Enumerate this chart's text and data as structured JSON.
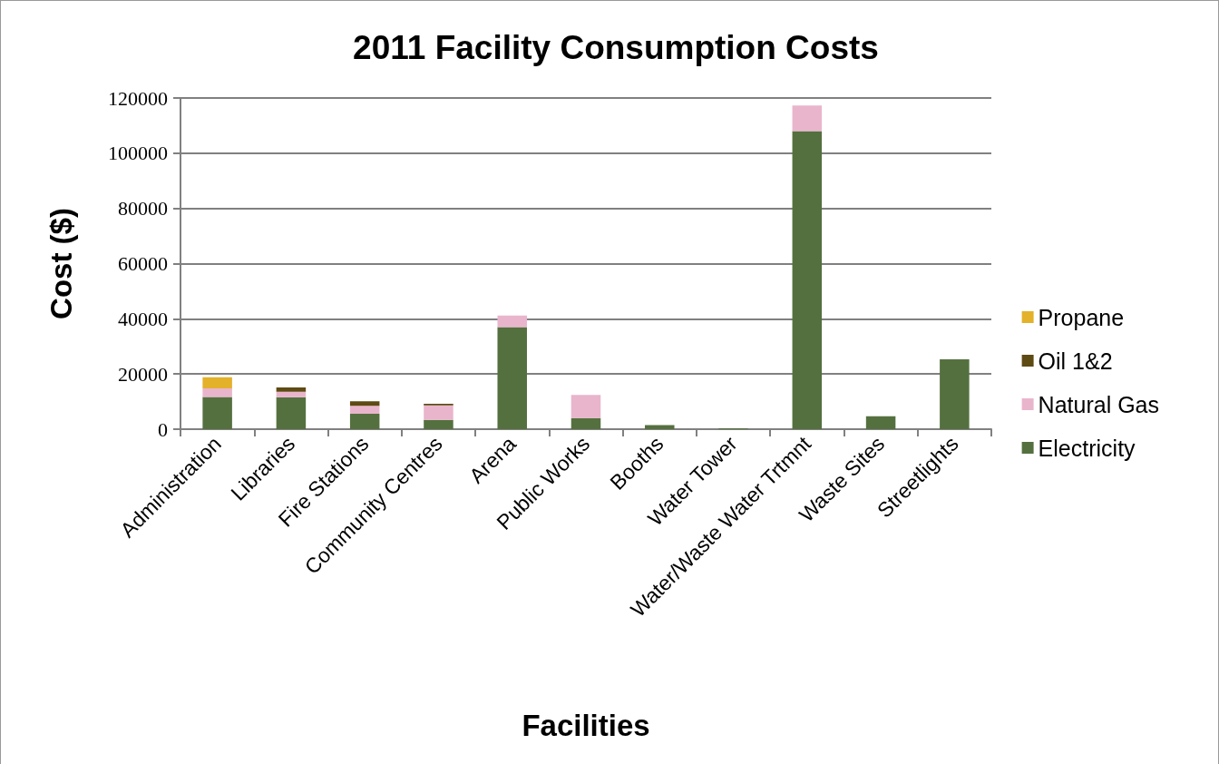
{
  "chart_data": {
    "type": "bar",
    "title": "2011 Facility Consumption Costs",
    "xlabel": "Facilities",
    "ylabel": "Cost ($)",
    "categories": [
      "Administration",
      "Libraries",
      "Fire Stations",
      "Community Centres",
      "Arena",
      "Public Works",
      "Booths",
      "Water Tower",
      "Water/Waste Water Trtmnt",
      "Waste Sites",
      "Streetlights"
    ],
    "stacked": true,
    "series": [
      {
        "name": "Electricity",
        "color": "#55703f",
        "values": [
          11700,
          11600,
          5600,
          3400,
          37000,
          4000,
          1500,
          300,
          108000,
          4700,
          25300
        ]
      },
      {
        "name": "Natural Gas",
        "color": "#e9b5cc",
        "values": [
          3100,
          2000,
          2900,
          5200,
          4200,
          8400,
          0,
          0,
          9300,
          0,
          0
        ]
      },
      {
        "name": "Oil 1&2",
        "color": "#5e4a13",
        "values": [
          0,
          1500,
          1600,
          600,
          0,
          0,
          0,
          0,
          0,
          0,
          0
        ]
      },
      {
        "name": "Propane",
        "color": "#e3b12a",
        "values": [
          4000,
          0,
          0,
          0,
          0,
          0,
          0,
          0,
          0,
          0,
          0
        ]
      }
    ],
    "ylim": [
      0,
      120000
    ],
    "yticks": [
      0,
      20000,
      40000,
      60000,
      80000,
      100000,
      120000
    ],
    "grid": "y",
    "legend": "right"
  }
}
